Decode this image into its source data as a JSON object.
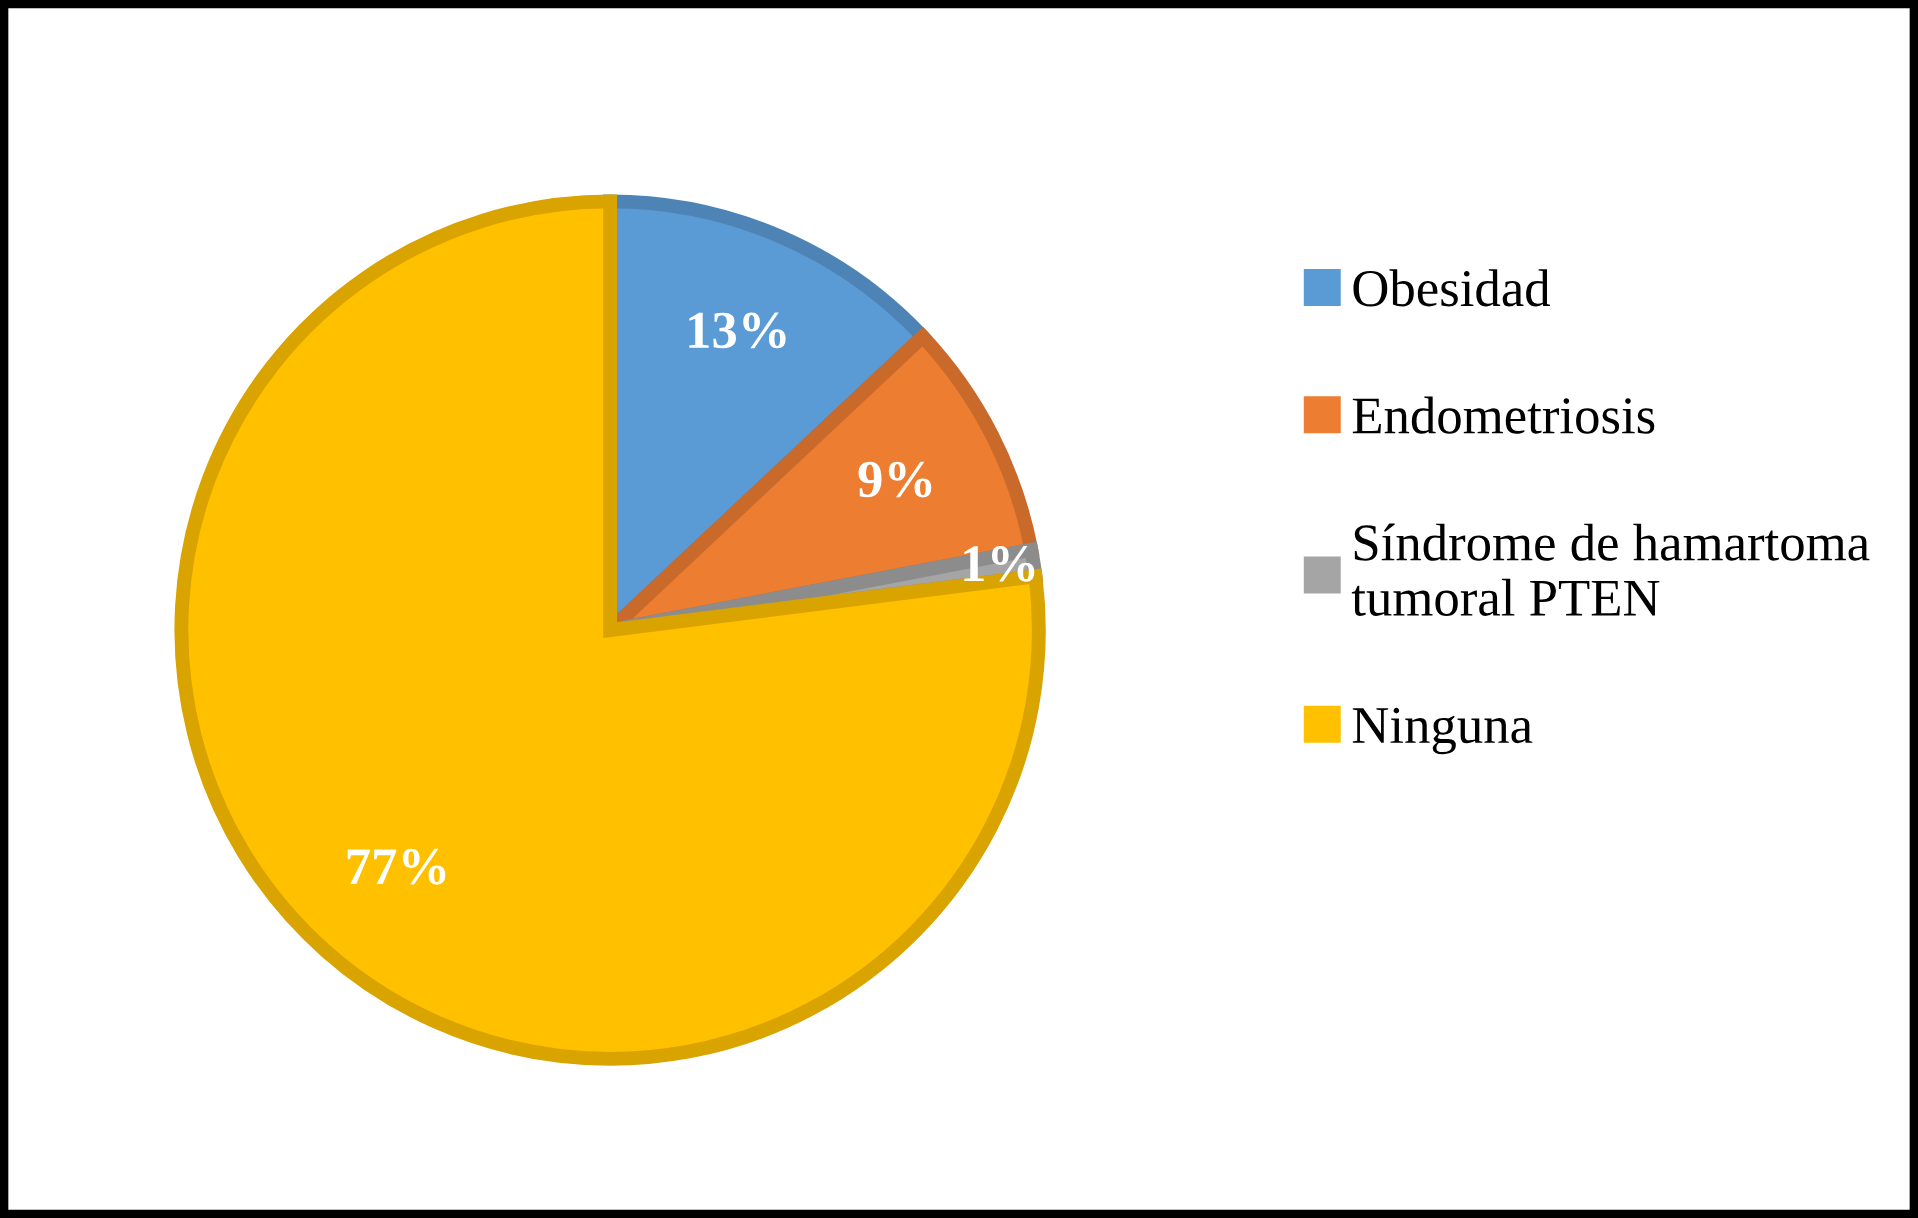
{
  "chart_data": {
    "type": "pie",
    "categories": [
      "Obesidad",
      "Endometriosis",
      "Síndrome de hamartoma\ntumoral PTEN",
      "Ninguna"
    ],
    "values": [
      13,
      9,
      1,
      77
    ],
    "value_labels": [
      "13%",
      "9%",
      "1%",
      "77%"
    ],
    "colors": [
      "#5b9bd5",
      "#ed7d31",
      "#a5a5a5",
      "#ffc000"
    ],
    "legend": "right"
  }
}
